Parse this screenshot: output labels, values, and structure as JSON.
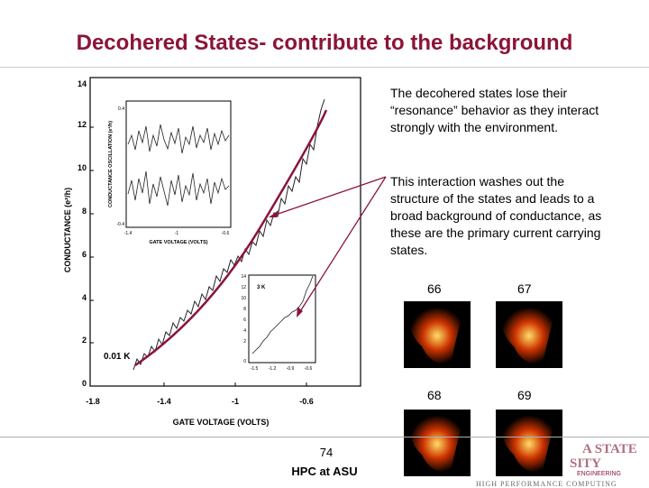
{
  "slide": {
    "title": "Decohered States- contribute to the background",
    "paragraph1": "The decohered states lose their “resonance” behavior as they interact strongly with the environment.",
    "paragraph2": "This interaction washes out the structure of the states and leads to a broad background of conductance, as these are the primary current carrying states.",
    "slide_number": "74",
    "footer": "HPC at ASU",
    "logo_line1": "A STATE",
    "logo_line2": "SITY",
    "logo_line3": "ENGINEERING",
    "logo_line4": "HIGH PERFORMANCE COMPUTING"
  },
  "states": [
    {
      "label": "66"
    },
    {
      "label": "67"
    },
    {
      "label": "68"
    },
    {
      "label": "69"
    }
  ],
  "colors": {
    "title": "#8b1538",
    "arrow": "#8b1538"
  },
  "main_plot": {
    "xlabel": "GATE VOLTAGE (VOLTS)",
    "ylabel": "CONDUCTANCE (e²/h)",
    "xticks": [
      "-1.8",
      "-1.4",
      "-1",
      "-0.6"
    ],
    "yticks": [
      "0",
      "2",
      "4",
      "6",
      "8",
      "10",
      "12",
      "14"
    ],
    "annotation": "0.01 K"
  },
  "inset_top": {
    "xlabel": "GATE VOLTAGE (VOLTS)",
    "ylabel": "CONDUCTANCE OSCILLATION (e²/h)",
    "xticks": [
      "-1.4",
      "-1",
      "-0.6"
    ],
    "yticks": [
      "0.4",
      "-0.4"
    ]
  },
  "inset_bottom": {
    "annotation": "3 K",
    "xticks": [
      "-1.5",
      "-1.2",
      "-0.9",
      "-0.6"
    ],
    "yticks": [
      "14",
      "12",
      "10",
      "8",
      "6",
      "4",
      "2",
      "0"
    ]
  }
}
